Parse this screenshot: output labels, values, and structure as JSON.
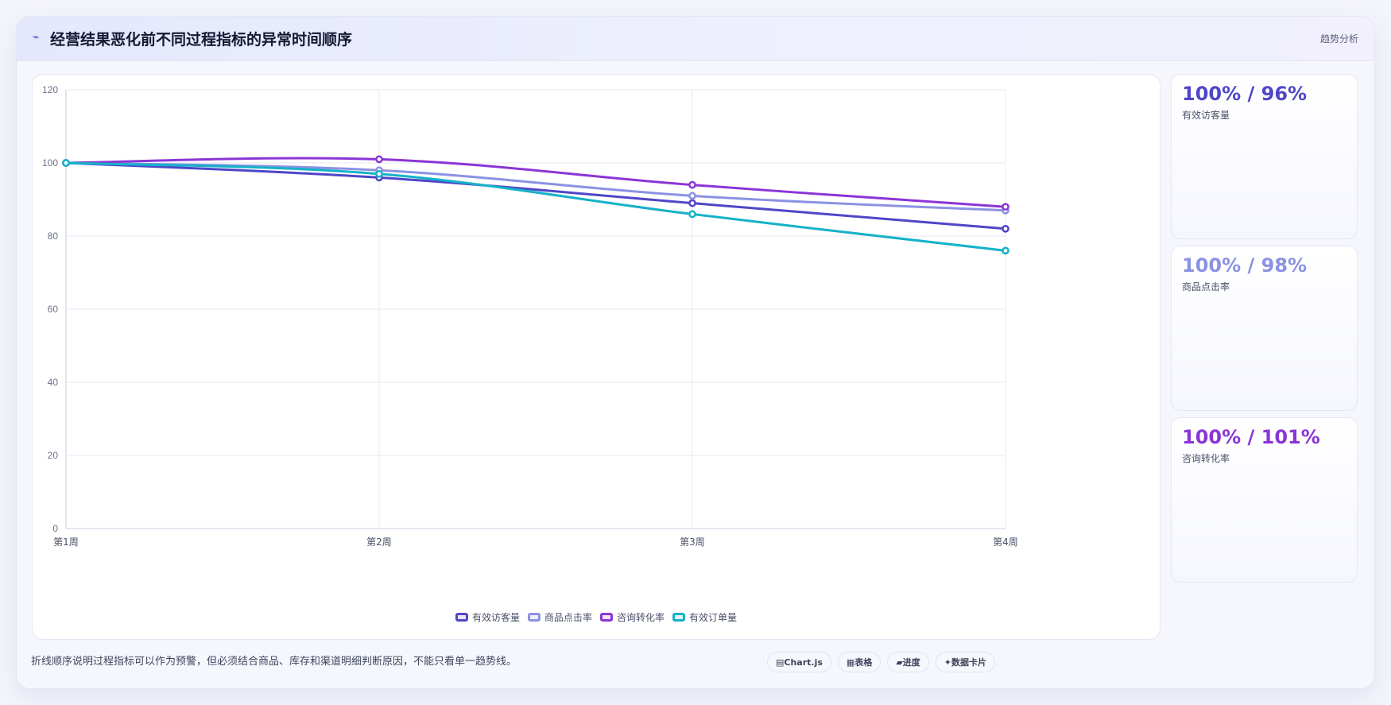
{
  "header": {
    "icon": "trend-icon",
    "title": "经营结果恶化前不同过程指标的异常时间顺序",
    "tag": "趋势分析"
  },
  "chart_data": {
    "type": "line",
    "categories": [
      "第1周",
      "第2周",
      "第3周",
      "第4周"
    ],
    "ylim": [
      0,
      120
    ],
    "yticks": [
      0,
      20,
      40,
      60,
      80,
      100,
      120
    ],
    "grid": true,
    "legend_position": "bottom",
    "series": [
      {
        "name": "有效访客量",
        "color": "#4f46c8",
        "values": [
          100,
          96,
          89,
          82
        ]
      },
      {
        "name": "商品点击率",
        "color": "#8b92e3",
        "values": [
          100,
          98,
          91,
          87
        ]
      },
      {
        "name": "咨询转化率",
        "color": "#8b35d6",
        "values": [
          100,
          101,
          94,
          88
        ]
      },
      {
        "name": "有效订单量",
        "color": "#15b2c8",
        "values": [
          100,
          97,
          86,
          76
        ]
      }
    ]
  },
  "stats": [
    {
      "value": "100% / 96%",
      "label": "有效访客量",
      "color": "#4f46c8"
    },
    {
      "value": "100% / 98%",
      "label": "商品点击率",
      "color": "#8b92e3"
    },
    {
      "value": "100% / 101%",
      "label": "咨询转化率",
      "color": "#8b35d6"
    }
  ],
  "footer": {
    "note": "折线顺序说明过程指标可以作为预警，但必须结合商品、库存和渠道明细判断原因，不能只看单一趋势线。",
    "chips": [
      {
        "icon": "chart-icon",
        "glyph": "▤",
        "label": "Chart.js"
      },
      {
        "icon": "table-icon",
        "glyph": "▦",
        "label": "表格"
      },
      {
        "icon": "progress-icon",
        "glyph": "▰",
        "label": "进度"
      },
      {
        "icon": "card-icon",
        "glyph": "✦",
        "label": "数据卡片"
      }
    ]
  }
}
